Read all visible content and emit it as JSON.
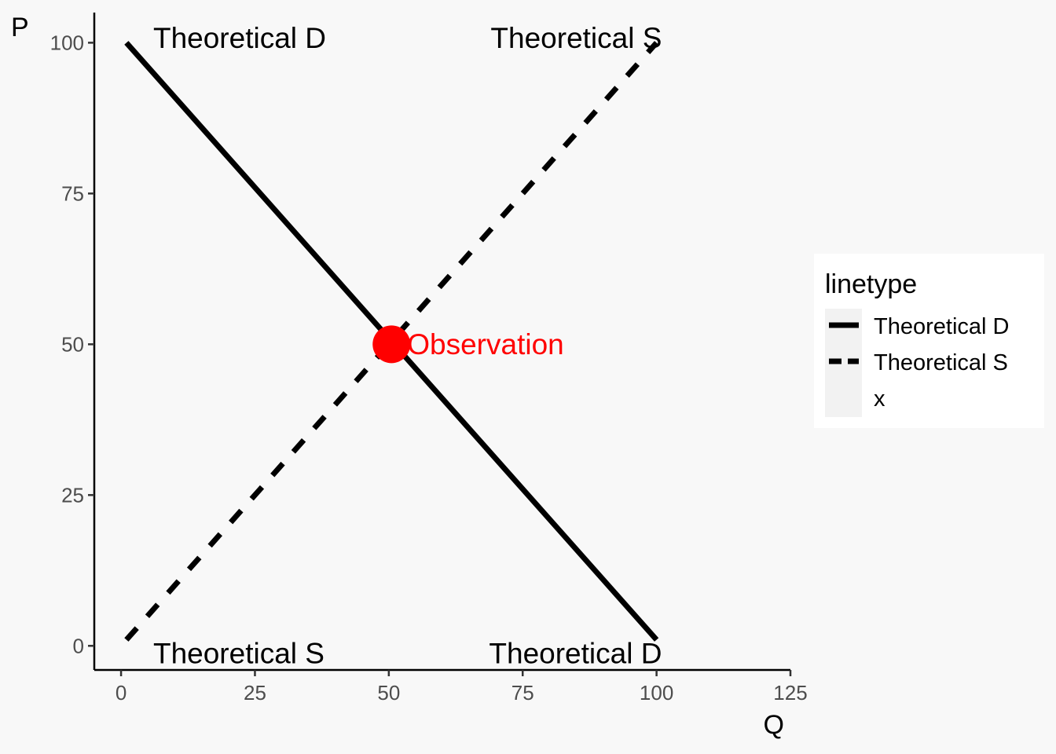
{
  "chart_data": {
    "type": "line",
    "xlabel": "Q",
    "ylabel": "P",
    "xlim": [
      -5,
      125
    ],
    "ylim": [
      -4,
      105
    ],
    "x_ticks": [
      0,
      25,
      50,
      75,
      100,
      125
    ],
    "y_ticks": [
      0,
      25,
      50,
      75,
      100
    ],
    "grid": false,
    "series": [
      {
        "name": "Theoretical D",
        "linetype": "solid",
        "color": "#000000",
        "points": [
          [
            1,
            100
          ],
          [
            100,
            1
          ]
        ]
      },
      {
        "name": "Theoretical S",
        "linetype": "dashed",
        "color": "#000000",
        "points": [
          [
            1,
            1
          ],
          [
            100,
            100
          ]
        ]
      }
    ],
    "observation": {
      "label": "Observation",
      "x": 50.5,
      "y": 50,
      "color": "#ff0000"
    },
    "annotations": [
      {
        "text": "Theoretical D",
        "x": 6,
        "y": 101,
        "anchor": "start"
      },
      {
        "text": "Theoretical S",
        "x": 101,
        "y": 101,
        "anchor": "end"
      },
      {
        "text": "Theoretical S",
        "x": 6,
        "y": -1,
        "anchor": "start"
      },
      {
        "text": "Theoretical D",
        "x": 101,
        "y": -1,
        "anchor": "end"
      }
    ],
    "legend": {
      "title": "linetype",
      "position": "right",
      "entries": [
        {
          "label": "Theoretical D",
          "linetype": "solid"
        },
        {
          "label": "Theoretical S",
          "linetype": "dashed"
        },
        {
          "label": "x",
          "linetype": "none"
        }
      ]
    }
  }
}
